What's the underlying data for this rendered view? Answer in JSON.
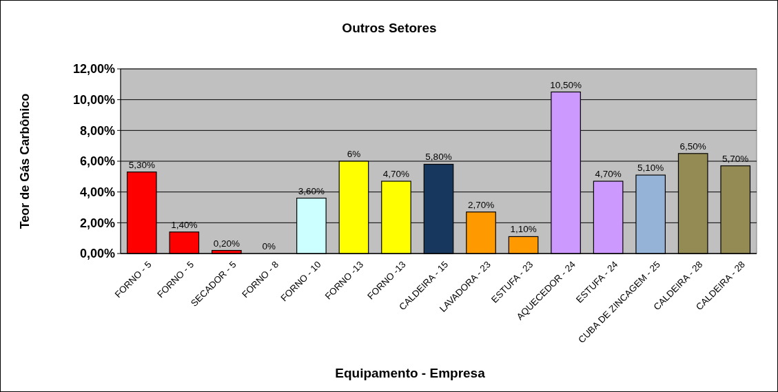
{
  "chart_data": {
    "type": "bar",
    "title": "Outros Setores",
    "xlabel": "Equipamento - Empresa",
    "ylabel": "Teor de Gás Carbônico",
    "categories": [
      "FORNO - 5",
      "FORNO - 5",
      "SECADOR - 5",
      "FORNO - 8",
      "FORNO - 10",
      "FORNO -13",
      "FORNO -13",
      "CALDEIRA - 15",
      "LAVADORA - 23",
      "ESTUFA - 23",
      "AQUECEDOR - 24",
      "ESTUFA - 24",
      "CUBA DE ZINCAGEM - 25",
      "CALDEIRA - 28",
      "CALDEIRA - 28"
    ],
    "values": [
      5.3,
      1.4,
      0.2,
      0,
      3.6,
      6,
      4.7,
      5.8,
      2.7,
      1.1,
      10.5,
      4.7,
      5.1,
      6.5,
      5.7
    ],
    "value_labels": [
      "5,30%",
      "1,40%",
      "0,20%",
      "0%",
      "3,60%",
      "6%",
      "4,70%",
      "5,80%",
      "2,70%",
      "1,10%",
      "10,50%",
      "4,70%",
      "5,10%",
      "6,50%",
      "5,70%"
    ],
    "colors": [
      "#ff0000",
      "#ff0000",
      "#ff0000",
      "#ff0000",
      "#ccffff",
      "#ffff00",
      "#ffff00",
      "#17375e",
      "#ff9900",
      "#ff9900",
      "#cc99ff",
      "#cc99ff",
      "#95b3d7",
      "#948a54",
      "#948a54"
    ],
    "ylim": [
      0,
      12
    ],
    "yticks": [
      {
        "value": 0,
        "label": "0,00%"
      },
      {
        "value": 2,
        "label": "2,00%"
      },
      {
        "value": 4,
        "label": "4,00%"
      },
      {
        "value": 6,
        "label": "6,00%"
      },
      {
        "value": 8,
        "label": "8,00%"
      },
      {
        "value": 10,
        "label": "10,00%"
      },
      {
        "value": 12,
        "label": "12,00%"
      }
    ],
    "grid": "y"
  }
}
